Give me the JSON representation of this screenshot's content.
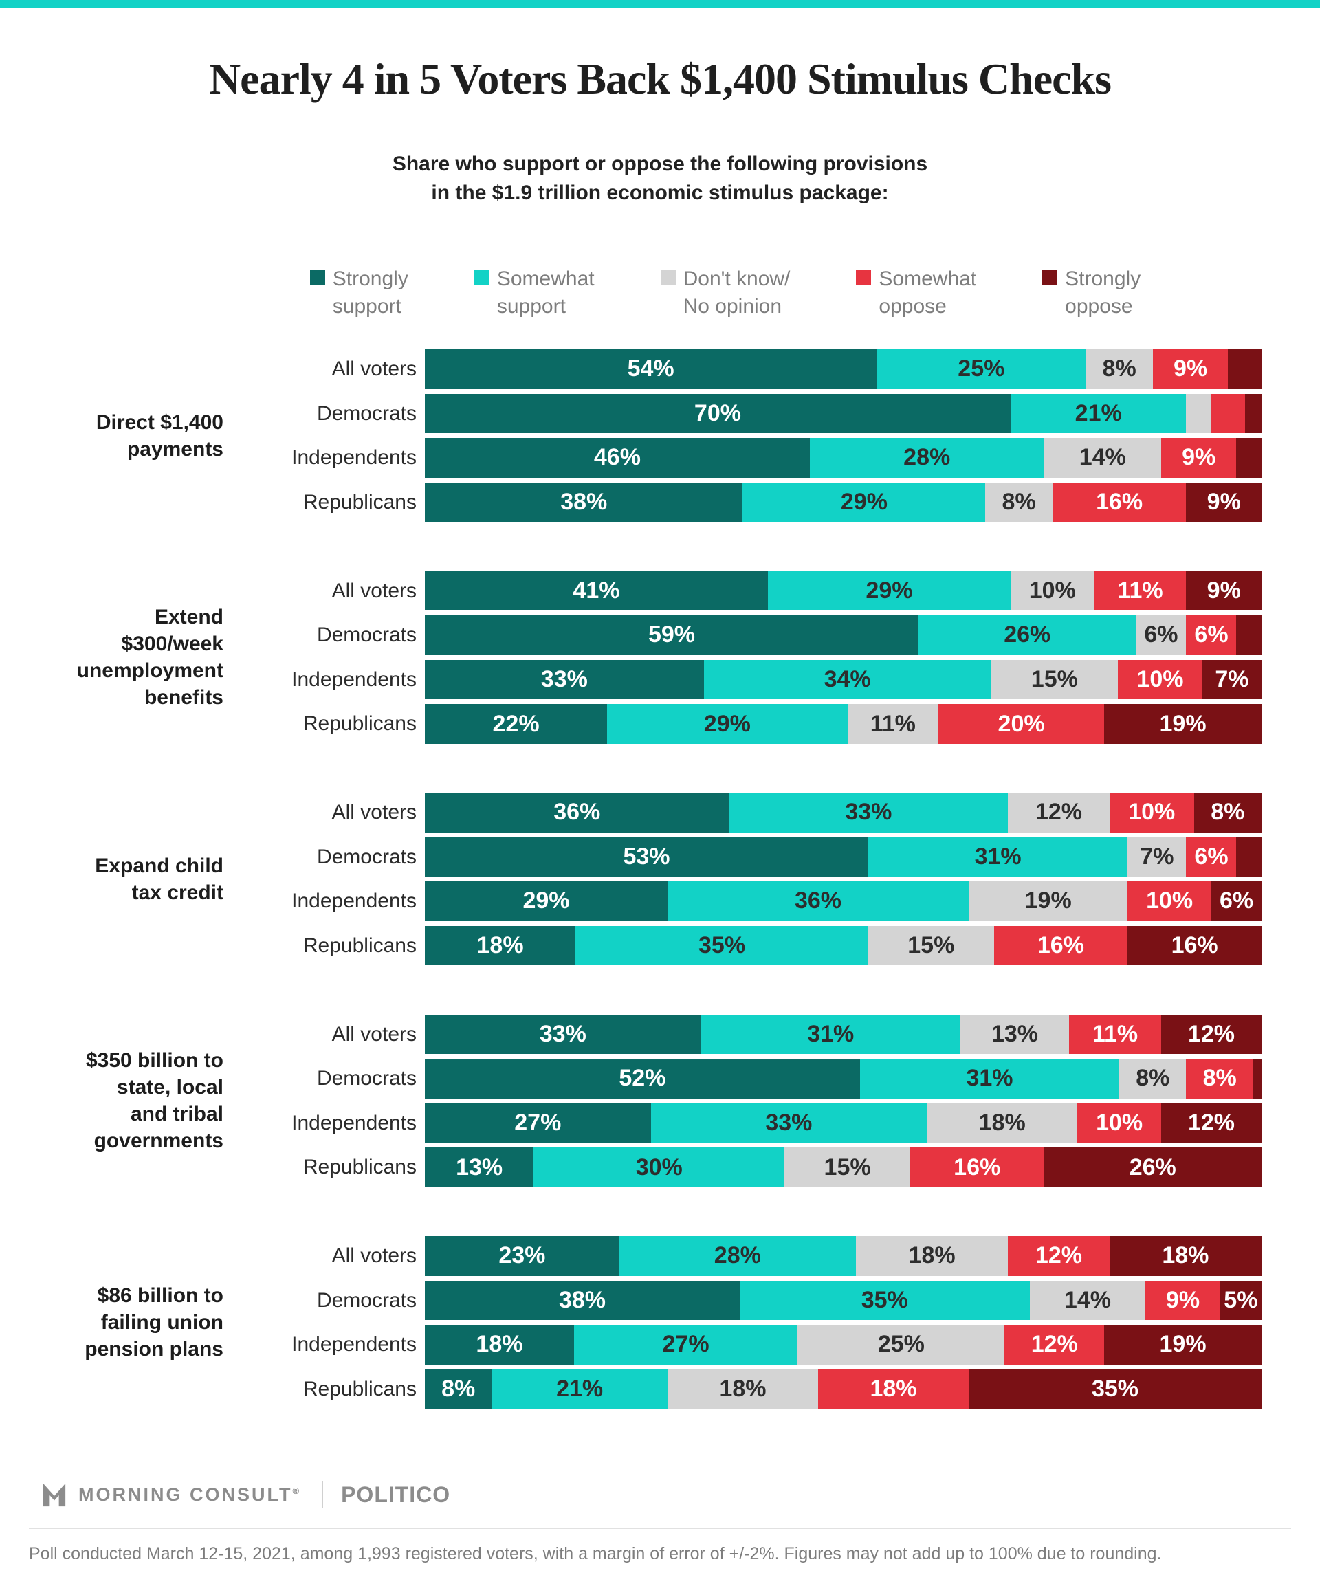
{
  "accent_color": "#12d2c6",
  "header": {
    "title": "Nearly 4 in 5 Voters Back $1,400 Stimulus Checks",
    "subtitle_line1": "Share who support or oppose the following provisions",
    "subtitle_line2": "in the $1.9 trillion economic stimulus package:"
  },
  "legend": {
    "items": [
      {
        "line1": "Strongly",
        "line2": "support",
        "color": "#0b6a64"
      },
      {
        "line1": "Somewhat",
        "line2": "support",
        "color": "#12d2c6"
      },
      {
        "line1": "Don't know/",
        "line2": "No opinion",
        "color": "#d4d4d4"
      },
      {
        "line1": "Somewhat",
        "line2": "oppose",
        "color": "#e73440"
      },
      {
        "line1": "Strongly",
        "line2": "oppose",
        "color": "#7a1115"
      }
    ]
  },
  "chart_data": {
    "type": "bar",
    "stacked": true,
    "orientation": "horizontal",
    "unit": "percent",
    "categories": [
      "Strongly support",
      "Somewhat support",
      "Don't know/No opinion",
      "Somewhat oppose",
      "Strongly oppose"
    ],
    "category_colors": [
      "#0b6a64",
      "#12d2c6",
      "#d4d4d4",
      "#e73440",
      "#7a1115"
    ],
    "label_text_colors": [
      "#ffffff",
      "#2d2d2d",
      "#2d2d2d",
      "#ffffff",
      "#ffffff"
    ],
    "row_labels": [
      "All voters",
      "Democrats",
      "Independents",
      "Republicans"
    ],
    "groups": [
      {
        "label_lines": [
          "Direct $1,400",
          "payments"
        ],
        "rows": [
          {
            "label": "All voters",
            "values": [
              54,
              25,
              8,
              9,
              4
            ],
            "value_labels": [
              "54%",
              "25%",
              "8%",
              "9%",
              ""
            ]
          },
          {
            "label": "Democrats",
            "values": [
              70,
              21,
              3,
              4,
              2
            ],
            "value_labels": [
              "70%",
              "21%",
              "",
              "",
              ""
            ]
          },
          {
            "label": "Independents",
            "values": [
              46,
              28,
              14,
              9,
              3
            ],
            "value_labels": [
              "46%",
              "28%",
              "14%",
              "9%",
              ""
            ]
          },
          {
            "label": "Republicans",
            "values": [
              38,
              29,
              8,
              16,
              9
            ],
            "value_labels": [
              "38%",
              "29%",
              "8%",
              "16%",
              "9%"
            ]
          }
        ]
      },
      {
        "label_lines": [
          "Extend",
          "$300/week",
          "unemployment",
          "benefits"
        ],
        "rows": [
          {
            "label": "All voters",
            "values": [
              41,
              29,
              10,
              11,
              9
            ],
            "value_labels": [
              "41%",
              "29%",
              "10%",
              "11%",
              "9%"
            ]
          },
          {
            "label": "Democrats",
            "values": [
              59,
              26,
              6,
              6,
              3
            ],
            "value_labels": [
              "59%",
              "26%",
              "6%",
              "6%",
              ""
            ]
          },
          {
            "label": "Independents",
            "values": [
              33,
              34,
              15,
              10,
              7
            ],
            "value_labels": [
              "33%",
              "34%",
              "15%",
              "10%",
              "7%"
            ]
          },
          {
            "label": "Republicans",
            "values": [
              22,
              29,
              11,
              20,
              19
            ],
            "value_labels": [
              "22%",
              "29%",
              "11%",
              "20%",
              "19%"
            ]
          }
        ]
      },
      {
        "label_lines": [
          "Expand child",
          "tax credit"
        ],
        "rows": [
          {
            "label": "All voters",
            "values": [
              36,
              33,
              12,
              10,
              8
            ],
            "value_labels": [
              "36%",
              "33%",
              "12%",
              "10%",
              "8%"
            ]
          },
          {
            "label": "Democrats",
            "values": [
              53,
              31,
              7,
              6,
              3
            ],
            "value_labels": [
              "53%",
              "31%",
              "7%",
              "6%",
              ""
            ]
          },
          {
            "label": "Independents",
            "values": [
              29,
              36,
              19,
              10,
              6
            ],
            "value_labels": [
              "29%",
              "36%",
              "19%",
              "10%",
              "6%"
            ]
          },
          {
            "label": "Republicans",
            "values": [
              18,
              35,
              15,
              16,
              16
            ],
            "value_labels": [
              "18%",
              "35%",
              "15%",
              "16%",
              "16%"
            ]
          }
        ]
      },
      {
        "label_lines": [
          "$350 billion to",
          "state, local",
          "and tribal",
          "governments"
        ],
        "rows": [
          {
            "label": "All voters",
            "values": [
              33,
              31,
              13,
              11,
              12
            ],
            "value_labels": [
              "33%",
              "31%",
              "13%",
              "11%",
              "12%"
            ]
          },
          {
            "label": "Democrats",
            "values": [
              52,
              31,
              8,
              8,
              1
            ],
            "value_labels": [
              "52%",
              "31%",
              "8%",
              "8%",
              ""
            ]
          },
          {
            "label": "Independents",
            "values": [
              27,
              33,
              18,
              10,
              12
            ],
            "value_labels": [
              "27%",
              "33%",
              "18%",
              "10%",
              "12%"
            ]
          },
          {
            "label": "Republicans",
            "values": [
              13,
              30,
              15,
              16,
              26
            ],
            "value_labels": [
              "13%",
              "30%",
              "15%",
              "16%",
              "26%"
            ]
          }
        ]
      },
      {
        "label_lines": [
          "$86 billion to",
          "failing union",
          "pension plans"
        ],
        "rows": [
          {
            "label": "All voters",
            "values": [
              23,
              28,
              18,
              12,
              18
            ],
            "value_labels": [
              "23%",
              "28%",
              "18%",
              "12%",
              "18%"
            ]
          },
          {
            "label": "Democrats",
            "values": [
              38,
              35,
              14,
              9,
              5
            ],
            "value_labels": [
              "38%",
              "35%",
              "14%",
              "9%",
              "5%"
            ]
          },
          {
            "label": "Independents",
            "values": [
              18,
              27,
              25,
              12,
              19
            ],
            "value_labels": [
              "18%",
              "27%",
              "25%",
              "12%",
              "19%"
            ]
          },
          {
            "label": "Republicans",
            "values": [
              8,
              21,
              18,
              18,
              35
            ],
            "value_labels": [
              "8%",
              "21%",
              "18%",
              "18%",
              "35%"
            ]
          }
        ]
      }
    ]
  },
  "footer": {
    "brand_primary": "MORNING CONSULT",
    "brand_registered": "®",
    "brand_secondary": "POLITICO",
    "note": "Poll conducted March 12-15, 2021, among 1,993 registered voters, with a margin of error of +/-2%. Figures may not add up to 100% due to rounding."
  }
}
